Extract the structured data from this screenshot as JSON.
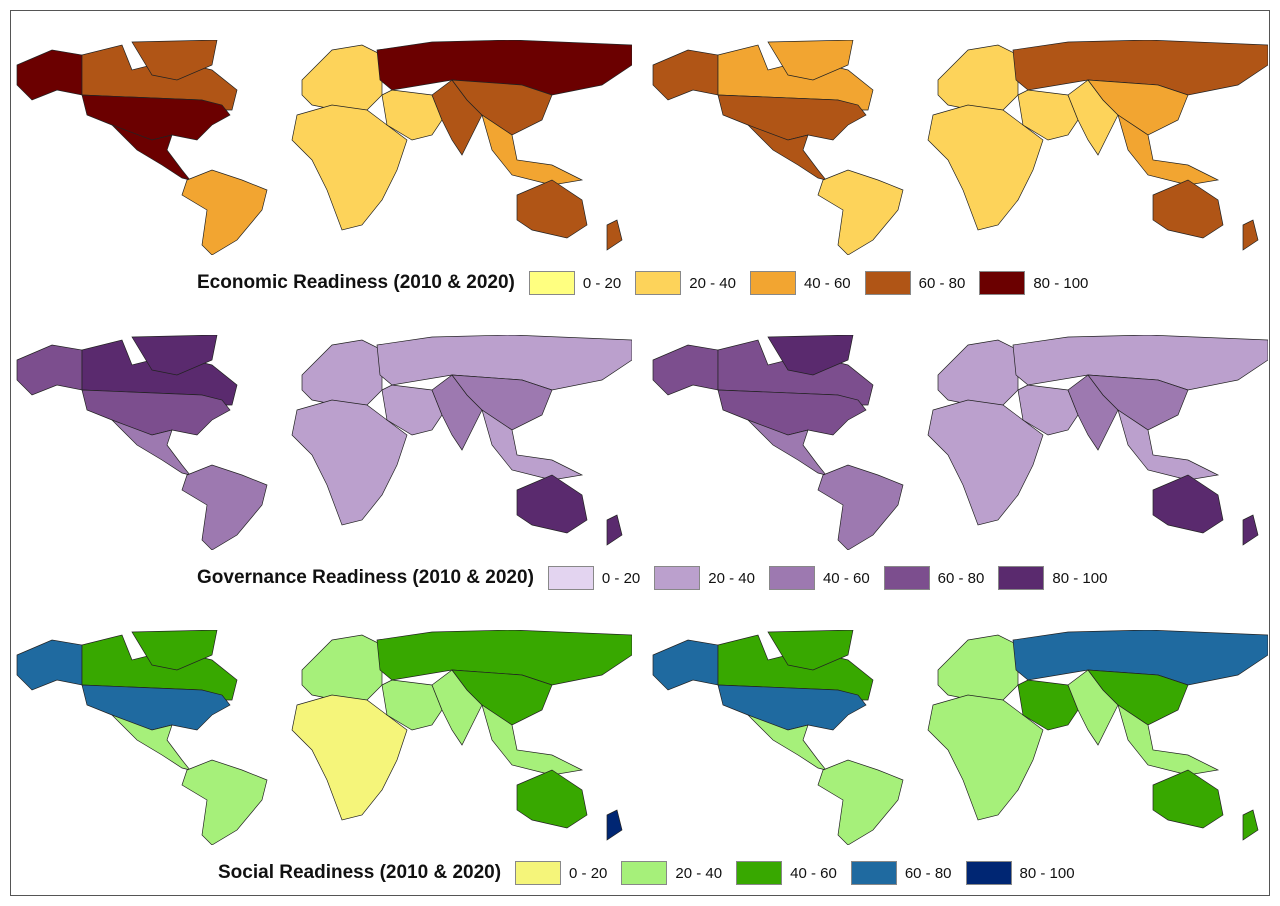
{
  "panels": [
    {
      "title": "Economic Readiness (2010 & 2020)",
      "classes": [
        "0 - 20",
        "20 - 40",
        "40 - 60",
        "60 - 80",
        "80 - 100"
      ],
      "colors": [
        "#ffff80",
        "#fdd35a",
        "#f2a531",
        "#b05516",
        "#6b0000"
      ],
      "maps": [
        {
          "year": "2010",
          "regions": {
            "alaska": 4,
            "canada": 3,
            "greenland": 3,
            "usa": 4,
            "mexico": 4,
            "southamerica": 2,
            "europe": 1,
            "russia": 4,
            "africa": 1,
            "mideast": 1,
            "india": 3,
            "china": 3,
            "seasia": 2,
            "australia": 3,
            "nz": 3
          }
        },
        {
          "year": "2020",
          "regions": {
            "alaska": 3,
            "canada": 2,
            "greenland": 2,
            "usa": 3,
            "mexico": 3,
            "southamerica": 1,
            "europe": 1,
            "russia": 3,
            "africa": 1,
            "mideast": 1,
            "india": 1,
            "china": 2,
            "seasia": 2,
            "australia": 3,
            "nz": 3
          }
        }
      ]
    },
    {
      "title": "Governance Readiness (2010 & 2020)",
      "classes": [
        "0 - 20",
        "20 - 40",
        "40 - 60",
        "60 - 80",
        "80 - 100"
      ],
      "colors": [
        "#e3d4f0",
        "#bba0cd",
        "#9d79b0",
        "#7c4e8e",
        "#5a2a6e"
      ],
      "maps": [
        {
          "year": "2010",
          "regions": {
            "alaska": 3,
            "canada": 4,
            "greenland": 4,
            "usa": 3,
            "mexico": 2,
            "southamerica": 2,
            "europe": 1,
            "russia": 1,
            "africa": 1,
            "mideast": 1,
            "india": 2,
            "china": 2,
            "seasia": 1,
            "australia": 4,
            "nz": 4
          }
        },
        {
          "year": "2020",
          "regions": {
            "alaska": 3,
            "canada": 3,
            "greenland": 4,
            "usa": 3,
            "mexico": 2,
            "southamerica": 2,
            "europe": 1,
            "russia": 1,
            "africa": 1,
            "mideast": 1,
            "india": 2,
            "china": 2,
            "seasia": 1,
            "australia": 4,
            "nz": 4
          }
        }
      ]
    },
    {
      "title": "Social Readiness (2010 & 2020)",
      "classes": [
        "0 - 20",
        "20 - 40",
        "40 - 60",
        "60 - 80",
        "80 - 100"
      ],
      "colors": [
        "#f5f57a",
        "#a6f07a",
        "#38a800",
        "#1f6aa0",
        "#002673"
      ],
      "maps": [
        {
          "year": "2010",
          "regions": {
            "alaska": 3,
            "canada": 2,
            "greenland": 2,
            "usa": 3,
            "mexico": 1,
            "southamerica": 1,
            "europe": 1,
            "russia": 2,
            "africa": 0,
            "mideast": 1,
            "india": 1,
            "china": 2,
            "seasia": 1,
            "australia": 2,
            "nz": 4
          }
        },
        {
          "year": "2020",
          "regions": {
            "alaska": 3,
            "canada": 2,
            "greenland": 2,
            "usa": 3,
            "mexico": 1,
            "southamerica": 1,
            "europe": 1,
            "russia": 3,
            "africa": 1,
            "mideast": 2,
            "india": 1,
            "china": 2,
            "seasia": 1,
            "australia": 2,
            "nz": 2
          }
        }
      ]
    }
  ]
}
